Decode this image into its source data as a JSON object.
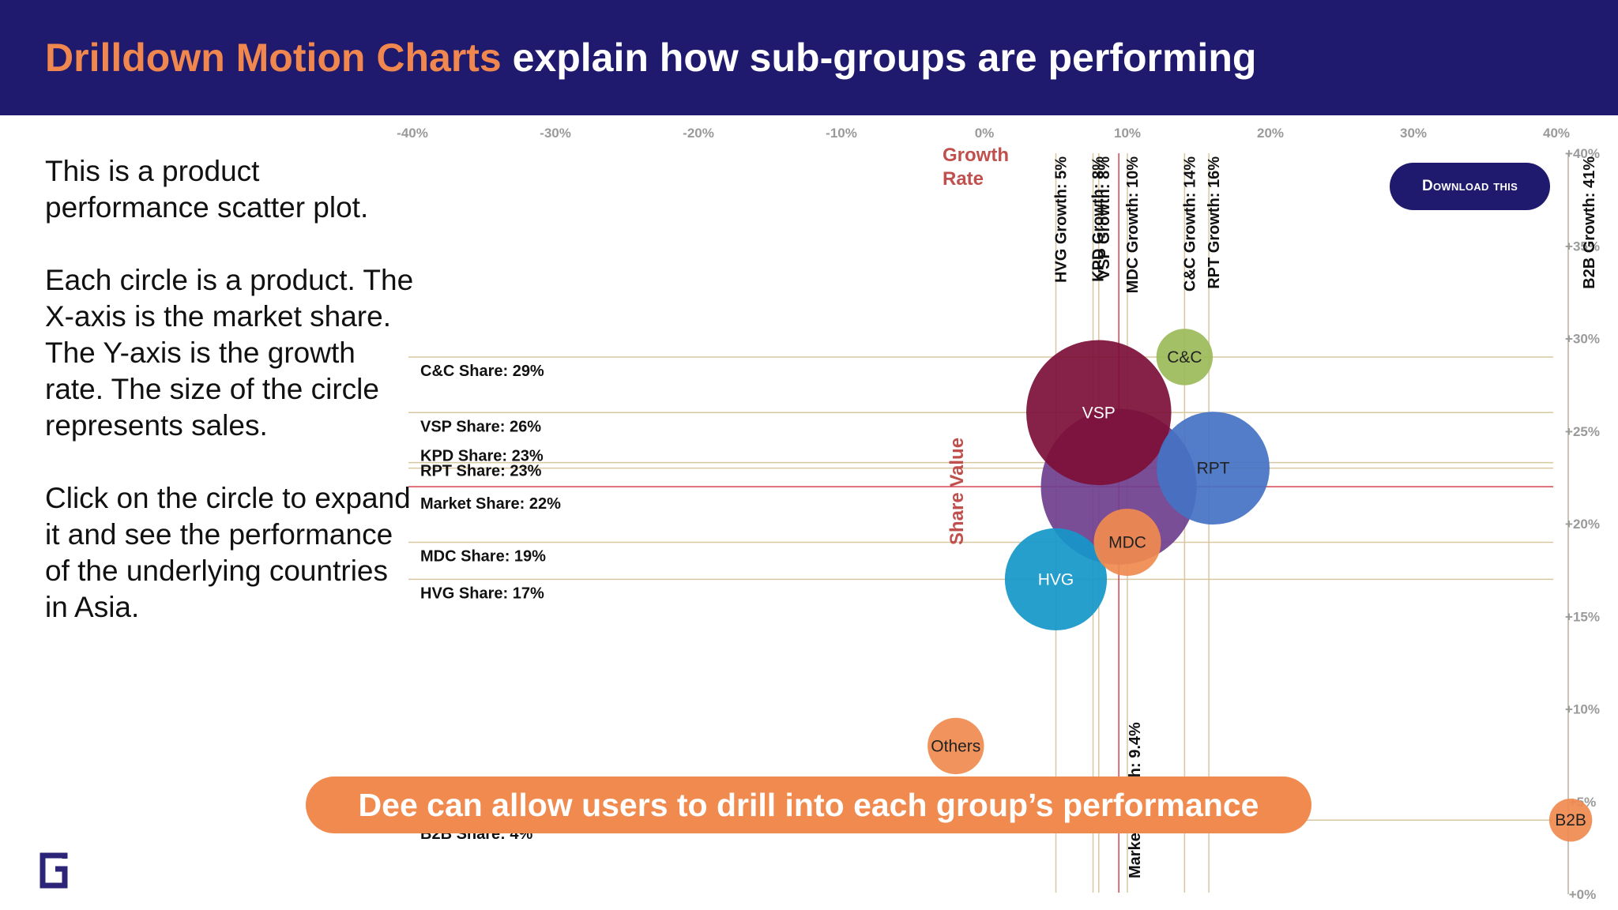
{
  "header": {
    "title_accent": "Drilldown Motion Charts",
    "title_rest": " explain how sub-groups are performing"
  },
  "description": {
    "p1": "This is a product performance scatter plot.",
    "p2": "Each circle is a product. The X-axis is the market share. The Y-axis is the growth rate. The size of the circle represents sales.",
    "p3": "Click on the circle to expand it and see the performance of the underlying countries in Asia."
  },
  "download_button": "Download this",
  "banner": "Dee can allow users to drill into each group’s performance",
  "chart_data": {
    "type": "scatter",
    "title": "",
    "xlabel": "Growth Rate",
    "ylabel": "Share Value",
    "xlim": [
      -40,
      40
    ],
    "ylim": [
      0,
      40
    ],
    "x_ticks": [
      "-40%",
      "-30%",
      "-20%",
      "-10%",
      "0%",
      "10%",
      "20%",
      "30%",
      "40%"
    ],
    "x_tick_values": [
      -40,
      -30,
      -20,
      -10,
      0,
      10,
      20,
      30,
      40
    ],
    "y_ticks": [
      "+0%",
      "+5%",
      "+10%",
      "+15%",
      "+20%",
      "+25%",
      "+30%",
      "+35%",
      "+40%"
    ],
    "y_tick_values": [
      0,
      5,
      10,
      15,
      20,
      25,
      30,
      35,
      40
    ],
    "points": [
      {
        "name": "Market",
        "x": 9.4,
        "y": 22,
        "r": 58,
        "color": "#6f3e8e"
      },
      {
        "name": "VSP",
        "x": 8,
        "y": 26,
        "r": 54,
        "color": "#7c0f37"
      },
      {
        "name": "RPT",
        "x": 16,
        "y": 23,
        "r": 42,
        "color": "#4472c4"
      },
      {
        "name": "HVG",
        "x": 5,
        "y": 17,
        "r": 38,
        "color": "#1597c9"
      },
      {
        "name": "MDC",
        "x": 10,
        "y": 19,
        "r": 25,
        "color": "#f08a4f"
      },
      {
        "name": "C&C",
        "x": 14,
        "y": 29,
        "r": 21,
        "color": "#9bbb59"
      },
      {
        "name": "Others",
        "x": -2,
        "y": 8,
        "r": 21,
        "color": "#f08a4f"
      },
      {
        "name": "B2B",
        "x": 41,
        "y": 4,
        "r": 16,
        "color": "#f08a4f"
      }
    ],
    "share_lines": [
      {
        "label": "C&C Share: 29%",
        "y": 29,
        "highlight": false
      },
      {
        "label": "VSP Share: 26%",
        "y": 26,
        "highlight": false
      },
      {
        "label": "KPD Share: 23%",
        "y": 23.3,
        "highlight": false
      },
      {
        "label": "RPT Share: 23%",
        "y": 23,
        "highlight": false
      },
      {
        "label": "Market Share: 22%",
        "y": 22,
        "highlight": true
      },
      {
        "label": "MDC Share: 19%",
        "y": 19,
        "highlight": false
      },
      {
        "label": "HVG Share: 17%",
        "y": 17,
        "highlight": false
      },
      {
        "label": "B2B Share: 4%",
        "y": 4,
        "highlight": false
      }
    ],
    "growth_lines": [
      {
        "label": "HVG Growth: 5%",
        "x": 5,
        "highlight": false
      },
      {
        "label": "KPD Growth: 8%",
        "x": 7.6,
        "highlight": false
      },
      {
        "label": "VSP Growth: 8%",
        "x": 8,
        "highlight": false
      },
      {
        "label": "MDC Growth: 10%",
        "x": 10,
        "highlight": false
      },
      {
        "label": "C&C Growth: 14%",
        "x": 14,
        "highlight": false
      },
      {
        "label": "RPT Growth: 16%",
        "x": 15.7,
        "highlight": false
      },
      {
        "label": "Market Growth: 9.4%",
        "x": 9.4,
        "highlight": true
      },
      {
        "label": "B2B Growth: 41%",
        "x": 41,
        "highlight": false
      }
    ]
  }
}
